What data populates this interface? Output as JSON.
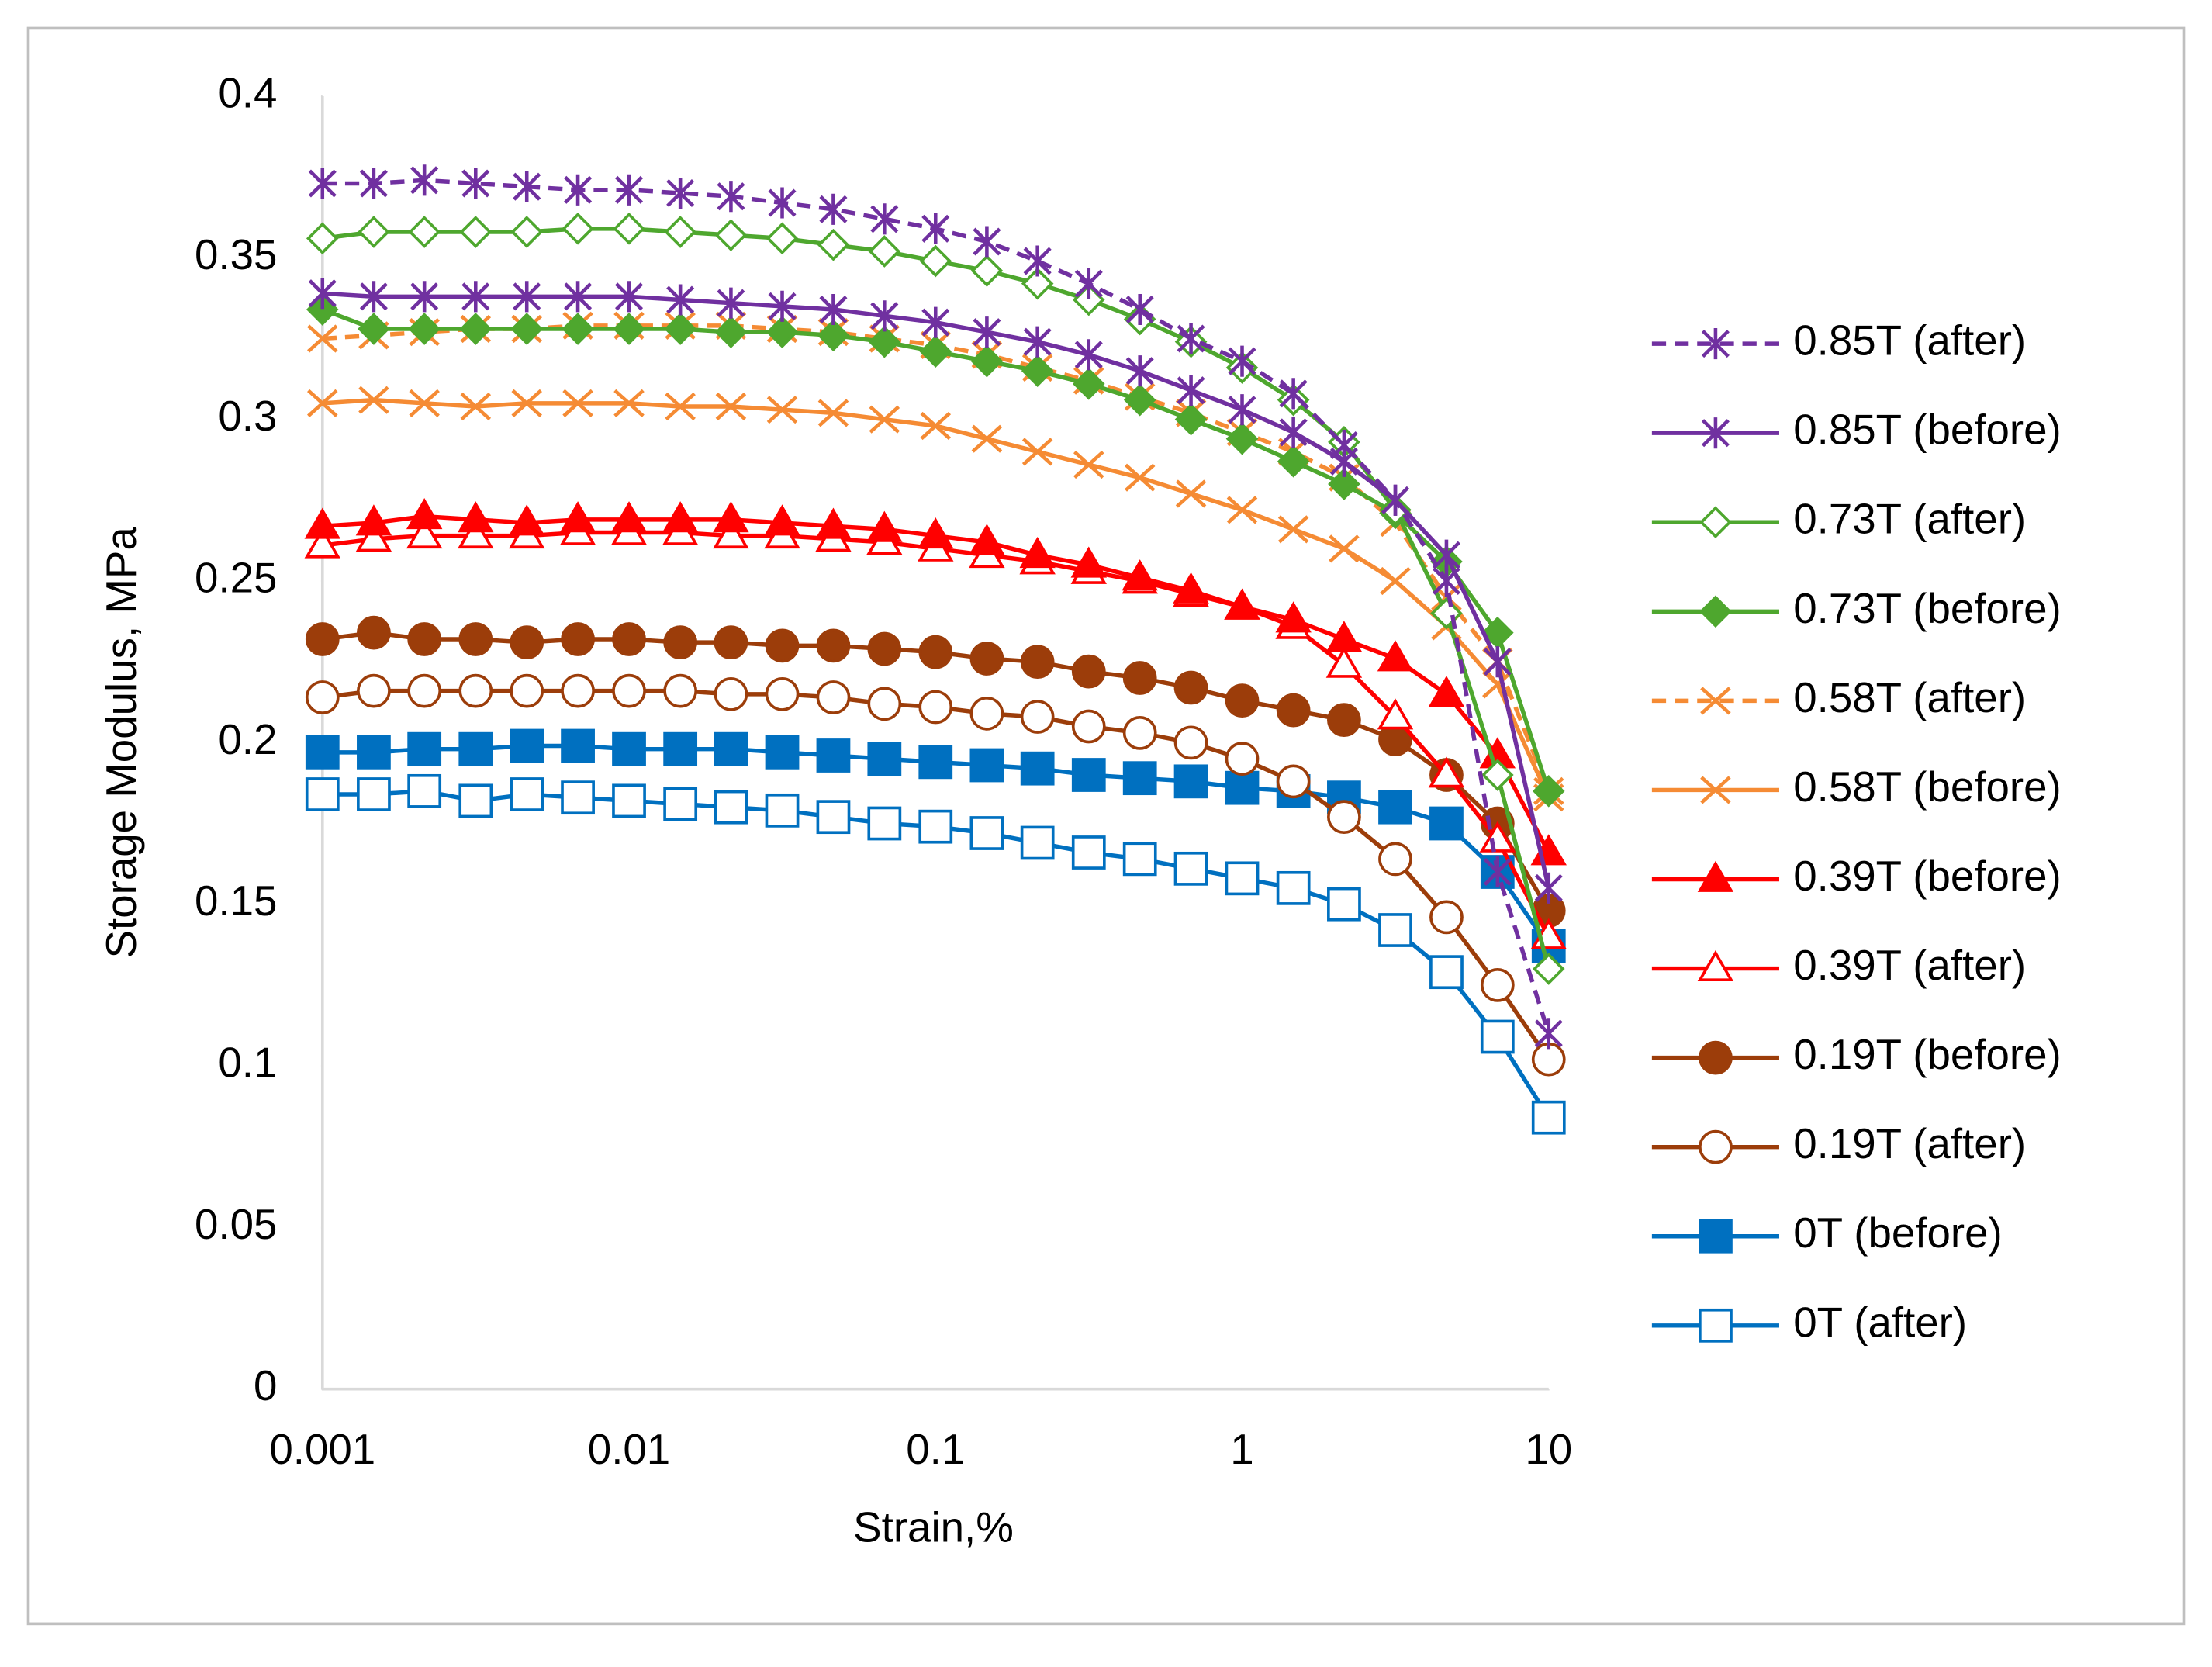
{
  "chart_data": {
    "type": "line",
    "x_label": "Strain,%",
    "y_label": "Storage Modulus, MPa",
    "xscale": "log",
    "xlim": [
      0.001,
      10
    ],
    "xticks": [
      0.001,
      0.01,
      0.1,
      1,
      10
    ],
    "ylim": [
      0,
      0.4
    ],
    "yticks": [
      0,
      0.05,
      0.1,
      0.15,
      0.2,
      0.25,
      0.3,
      0.35,
      0.4
    ],
    "grid": false,
    "legend": "right",
    "x": [
      0.001,
      0.00147,
      0.00215,
      0.00316,
      0.00464,
      0.00681,
      0.01,
      0.0147,
      0.0215,
      0.0316,
      0.0464,
      0.0681,
      0.1,
      0.147,
      0.215,
      0.316,
      0.464,
      0.681,
      1,
      1.47,
      2.15,
      3.16,
      4.64,
      6.81,
      10
    ],
    "series": [
      {
        "name": "0.85T (after)",
        "color": "#7030a0",
        "marker": "asterisk",
        "filled": false,
        "dashed": true,
        "values": [
          0.373,
          0.373,
          0.374,
          0.373,
          0.372,
          0.371,
          0.371,
          0.37,
          0.369,
          0.367,
          0.365,
          0.362,
          0.359,
          0.355,
          0.349,
          0.342,
          0.334,
          0.325,
          0.318,
          0.308,
          0.292,
          0.275,
          0.25,
          0.16,
          0.11
        ]
      },
      {
        "name": "0.85T (before)",
        "color": "#7030a0",
        "marker": "asterisk",
        "filled": false,
        "dashed": false,
        "values": [
          0.339,
          0.338,
          0.338,
          0.338,
          0.338,
          0.338,
          0.338,
          0.337,
          0.336,
          0.335,
          0.334,
          0.332,
          0.33,
          0.327,
          0.324,
          0.32,
          0.315,
          0.309,
          0.303,
          0.296,
          0.287,
          0.275,
          0.258,
          0.225,
          0.155
        ]
      },
      {
        "name": "0.73T (after)",
        "color": "#4ea72e",
        "marker": "diamond",
        "filled": false,
        "dashed": false,
        "values": [
          0.356,
          0.358,
          0.358,
          0.358,
          0.358,
          0.359,
          0.359,
          0.358,
          0.357,
          0.356,
          0.354,
          0.352,
          0.349,
          0.346,
          0.342,
          0.337,
          0.331,
          0.324,
          0.316,
          0.306,
          0.293,
          0.272,
          0.24,
          0.19,
          0.13
        ]
      },
      {
        "name": "0.73T (before)",
        "color": "#4ea72e",
        "marker": "diamond",
        "filled": true,
        "dashed": false,
        "values": [
          0.334,
          0.328,
          0.328,
          0.328,
          0.328,
          0.328,
          0.328,
          0.328,
          0.327,
          0.327,
          0.326,
          0.324,
          0.321,
          0.318,
          0.315,
          0.311,
          0.306,
          0.3,
          0.294,
          0.287,
          0.28,
          0.271,
          0.256,
          0.234,
          0.185
        ]
      },
      {
        "name": "0.58T (after)",
        "color": "#f58b34",
        "marker": "x",
        "filled": false,
        "dashed": true,
        "values": [
          0.325,
          0.326,
          0.327,
          0.328,
          0.328,
          0.329,
          0.329,
          0.329,
          0.329,
          0.328,
          0.327,
          0.325,
          0.323,
          0.32,
          0.316,
          0.312,
          0.307,
          0.302,
          0.296,
          0.29,
          0.282,
          0.268,
          0.245,
          0.225,
          0.185
        ]
      },
      {
        "name": "0.58T (before)",
        "color": "#f58b34",
        "marker": "x",
        "filled": false,
        "dashed": false,
        "values": [
          0.305,
          0.306,
          0.305,
          0.304,
          0.305,
          0.305,
          0.305,
          0.304,
          0.304,
          0.303,
          0.302,
          0.3,
          0.298,
          0.294,
          0.29,
          0.286,
          0.282,
          0.277,
          0.272,
          0.266,
          0.26,
          0.25,
          0.236,
          0.218,
          0.183
        ]
      },
      {
        "name": "0.39T (before)",
        "color": "#ff0000",
        "marker": "triangle",
        "filled": true,
        "dashed": false,
        "values": [
          0.267,
          0.268,
          0.27,
          0.269,
          0.268,
          0.269,
          0.269,
          0.269,
          0.269,
          0.268,
          0.267,
          0.266,
          0.264,
          0.262,
          0.258,
          0.255,
          0.251,
          0.247,
          0.242,
          0.238,
          0.232,
          0.226,
          0.215,
          0.196,
          0.166
        ]
      },
      {
        "name": "0.39T (after)",
        "color": "#ff0000",
        "marker": "triangle",
        "filled": false,
        "dashed": false,
        "values": [
          0.261,
          0.263,
          0.264,
          0.264,
          0.264,
          0.265,
          0.265,
          0.265,
          0.264,
          0.264,
          0.263,
          0.262,
          0.26,
          0.258,
          0.256,
          0.253,
          0.25,
          0.246,
          0.242,
          0.236,
          0.224,
          0.208,
          0.19,
          0.17,
          0.14
        ]
      },
      {
        "name": "0.19T (before)",
        "color": "#9c3d0a",
        "marker": "circle",
        "filled": true,
        "dashed": false,
        "values": [
          0.232,
          0.234,
          0.232,
          0.232,
          0.231,
          0.232,
          0.232,
          0.231,
          0.231,
          0.23,
          0.23,
          0.229,
          0.228,
          0.226,
          0.225,
          0.222,
          0.22,
          0.217,
          0.213,
          0.21,
          0.207,
          0.201,
          0.19,
          0.175,
          0.148
        ]
      },
      {
        "name": "0.19T (after)",
        "color": "#9c3d0a",
        "marker": "circle",
        "filled": false,
        "dashed": false,
        "values": [
          0.214,
          0.216,
          0.216,
          0.216,
          0.216,
          0.216,
          0.216,
          0.216,
          0.215,
          0.215,
          0.214,
          0.212,
          0.211,
          0.209,
          0.208,
          0.205,
          0.203,
          0.2,
          0.195,
          0.188,
          0.177,
          0.164,
          0.146,
          0.125,
          0.102
        ]
      },
      {
        "name": "0T (before)",
        "color": "#0070c0",
        "marker": "square",
        "filled": true,
        "dashed": false,
        "values": [
          0.197,
          0.197,
          0.198,
          0.198,
          0.199,
          0.199,
          0.198,
          0.198,
          0.198,
          0.197,
          0.196,
          0.195,
          0.194,
          0.193,
          0.192,
          0.19,
          0.189,
          0.188,
          0.186,
          0.185,
          0.183,
          0.18,
          0.175,
          0.16,
          0.137
        ]
      },
      {
        "name": "0T (after)",
        "color": "#0070c0",
        "marker": "square",
        "filled": false,
        "dashed": false,
        "values": [
          0.184,
          0.184,
          0.185,
          0.182,
          0.184,
          0.183,
          0.182,
          0.181,
          0.18,
          0.179,
          0.177,
          0.175,
          0.174,
          0.172,
          0.169,
          0.166,
          0.164,
          0.161,
          0.158,
          0.155,
          0.15,
          0.142,
          0.129,
          0.109,
          0.084
        ]
      }
    ]
  }
}
